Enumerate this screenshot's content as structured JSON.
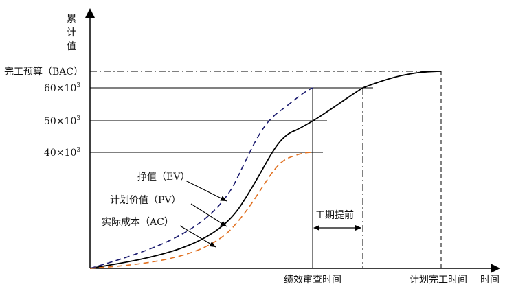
{
  "y_axis_label": [
    "累",
    "计",
    "值"
  ],
  "x_axis_label": "时间",
  "bac_label": "完工预算（BAC）",
  "ticks": {
    "t60": {
      "base": "60×10",
      "exp": "3"
    },
    "t50": {
      "base": "50×10",
      "exp": "3"
    },
    "t40": {
      "base": "40×10",
      "exp": "3"
    }
  },
  "curves": {
    "ev": "挣值（EV）",
    "pv": "计划价值（PV）",
    "ac": "实际成本（AC）"
  },
  "schedule_ahead_label": "工期提前",
  "status_date_label": "绩效审查时间",
  "planned_finish_label": "计划完工时间",
  "colors": {
    "pv_line": "#000000",
    "ev_line": "#1a1a6e",
    "ac_line": "#e07020",
    "axis": "#000000"
  }
}
